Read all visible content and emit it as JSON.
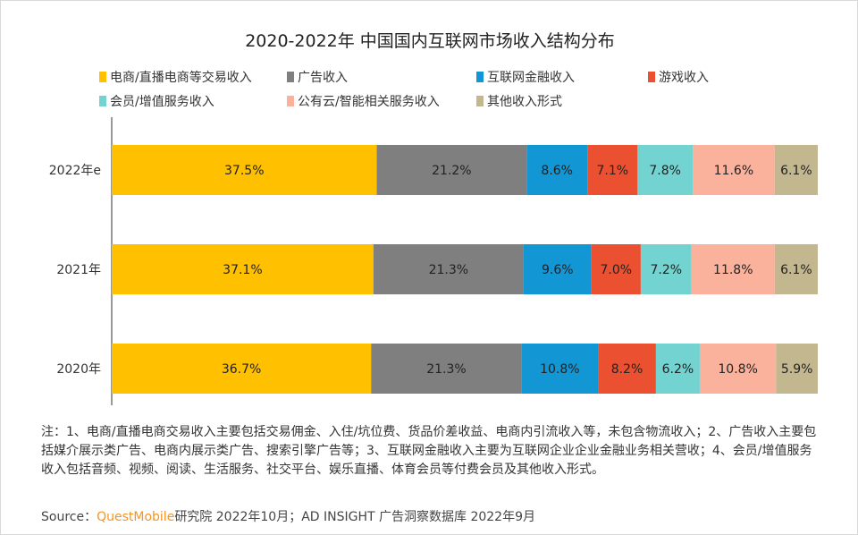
{
  "chart_data": {
    "type": "bar",
    "orientation": "horizontal",
    "stacked": true,
    "title": "2020-2022年 中国国内互联网市场收入结构分布",
    "categories": [
      "2022年e",
      "2021年",
      "2020年"
    ],
    "series": [
      {
        "name": "电商/直播电商等交易收入",
        "values": [
          37.5,
          37.1,
          36.7
        ],
        "color": "#FFC000"
      },
      {
        "name": "广告收入",
        "values": [
          21.2,
          21.3,
          21.3
        ],
        "color": "#7F7F7F"
      },
      {
        "name": "互联网金融收入",
        "values": [
          8.6,
          9.6,
          10.8
        ],
        "color": "#1296D4"
      },
      {
        "name": "游戏收入",
        "values": [
          7.1,
          7.0,
          8.2
        ],
        "color": "#EB5030"
      },
      {
        "name": "会员/增值服务收入",
        "values": [
          7.8,
          7.2,
          6.2
        ],
        "color": "#72D3D0"
      },
      {
        "name": "公有云/智能相关服务收入",
        "values": [
          11.6,
          11.8,
          10.8
        ],
        "color": "#FBB29C"
      },
      {
        "name": "其他收入形式",
        "values": [
          6.1,
          6.1,
          5.9
        ],
        "color": "#C3B78F"
      }
    ],
    "value_suffix": "%",
    "legend_position": "top",
    "grid": false
  },
  "note": "注：1、电商/直播电商交易收入主要包括交易佣金、入住/坑位费、货品价差收益、电商内引流收入等，未包含物流收入；2、广告收入主要包括媒介展示类广告、电商内展示类广告、搜索引擎广告等；3、互联网金融收入主要为互联网企业企业金融业务相关营收；4、会员/增值服务收入包括音频、视频、阅读、生活服务、社交平台、娱乐直播、体育会员等付费会员及其他收入形式。",
  "source": {
    "label": "Source：",
    "brand": "QuestMobile",
    "text": "研究院 2022年10月；AD INSIGHT 广告洞察数据库 2022年9月"
  }
}
